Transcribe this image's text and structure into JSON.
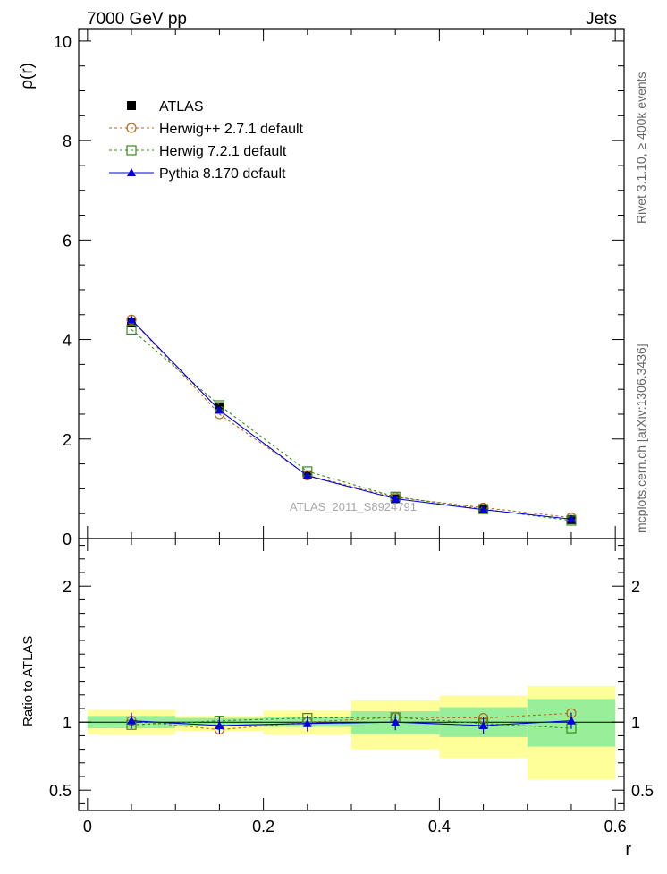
{
  "header": {
    "left_label": "7000 GeV pp",
    "right_label": "Jets"
  },
  "side_text": {
    "rivet": "Rivet 3.1.10, ≥ 400k events",
    "mcplots": "mcplots.cern.ch [arXiv:1306.3436]"
  },
  "watermark": "ATLAS_2011_S8924791",
  "chart_data": {
    "type": "line",
    "x": [
      0.05,
      0.15,
      0.25,
      0.35,
      0.45,
      0.55
    ],
    "xlim": [
      -0.01,
      0.61
    ],
    "xlabel": "r",
    "x_ticks": [
      0,
      0.2,
      0.4,
      0.6
    ],
    "x_tick_labels": [
      "0",
      "0.2",
      "0.4",
      "0.6"
    ],
    "main": {
      "ylabel": "ρ(r)",
      "ylim": [
        0,
        10.25
      ],
      "y_ticks": [
        0,
        2,
        4,
        6,
        8,
        10
      ],
      "y_tick_labels": [
        "0",
        "2",
        "4",
        "6",
        "8",
        "10"
      ],
      "series": [
        {
          "name": "ATLAS",
          "values": [
            4.35,
            2.65,
            1.28,
            0.8,
            0.6,
            0.38
          ],
          "color": "#000000",
          "marker": "filled-square",
          "dash": "none"
        },
        {
          "name": "Herwig++ 2.7.1 default",
          "values": [
            4.4,
            2.5,
            1.27,
            0.83,
            0.62,
            0.42
          ],
          "color": "#b8681a",
          "marker": "open-circle",
          "dash": "3,3"
        },
        {
          "name": "Herwig 7.2.1 default",
          "values": [
            4.2,
            2.68,
            1.35,
            0.84,
            0.59,
            0.36
          ],
          "color": "#3a8a1a",
          "marker": "open-square",
          "dash": "3,3"
        },
        {
          "name": "Pythia 8.170 default",
          "values": [
            4.4,
            2.58,
            1.26,
            0.8,
            0.58,
            0.39
          ],
          "color": "#0000e0",
          "marker": "filled-triangle",
          "dash": "none"
        }
      ]
    },
    "ratio": {
      "ylabel": "Ratio to ATLAS",
      "ylim": [
        0.35,
        2.35
      ],
      "y_ticks": [
        0.5,
        1,
        2
      ],
      "y_tick_labels": [
        "0.5",
        "1",
        "2"
      ],
      "bins": [
        [
          0.0,
          0.1
        ],
        [
          0.1,
          0.2
        ],
        [
          0.2,
          0.3
        ],
        [
          0.3,
          0.4
        ],
        [
          0.4,
          0.5
        ],
        [
          0.5,
          0.6
        ]
      ],
      "band_inner": [
        [
          0.955,
          1.045
        ],
        [
          0.97,
          1.03
        ],
        [
          0.965,
          1.04
        ],
        [
          0.91,
          1.08
        ],
        [
          0.89,
          1.11
        ],
        [
          0.82,
          1.17
        ]
      ],
      "band_outer": [
        [
          0.91,
          1.09
        ],
        [
          0.935,
          1.045
        ],
        [
          0.91,
          1.085
        ],
        [
          0.8,
          1.16
        ],
        [
          0.735,
          1.195
        ],
        [
          0.575,
          1.265
        ]
      ],
      "band_inner_color": "#99ee99",
      "band_outer_color": "#ffff99",
      "series": [
        {
          "name": "Herwig++ 2.7.1 default",
          "values": [
            1.01,
            0.945,
            1.0,
            1.035,
            1.03,
            1.065
          ],
          "color": "#b8681a",
          "marker": "open-circle",
          "dash": "3,3"
        },
        {
          "name": "Herwig 7.2.1 default",
          "values": [
            0.98,
            1.01,
            1.03,
            1.035,
            0.99,
            0.955
          ],
          "color": "#3a8a1a",
          "marker": "open-square",
          "dash": "3,3"
        },
        {
          "name": "Pythia 8.170 default",
          "values": [
            1.01,
            0.975,
            0.99,
            1.0,
            0.975,
            1.01
          ],
          "color": "#0000e0",
          "marker": "filled-triangle",
          "dash": "none"
        }
      ]
    }
  }
}
